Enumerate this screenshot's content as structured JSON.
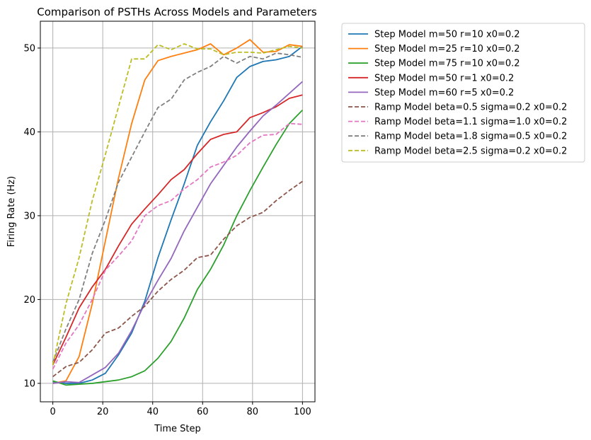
{
  "chart_data": {
    "type": "line",
    "title": "Comparison of PSTHs Across Models and Parameters",
    "xlabel": "Time Step",
    "ylabel": "Firing Rate (Hz)",
    "xlim": [
      -5,
      105
    ],
    "ylim": [
      7.8,
      53.2
    ],
    "xticks": [
      0,
      20,
      40,
      60,
      80,
      100
    ],
    "yticks": [
      10,
      20,
      30,
      40,
      50
    ],
    "grid": true,
    "legend_position": "outside-right",
    "x": [
      0,
      5.26,
      10.53,
      15.79,
      21.05,
      26.32,
      31.58,
      36.84,
      42.11,
      47.37,
      52.63,
      57.89,
      63.16,
      68.42,
      73.68,
      78.95,
      84.21,
      89.47,
      94.74,
      100
    ],
    "series": [
      {
        "name": "Step Model m=50 r=10 x0=0.2",
        "color": "#1f77b4",
        "dash": false,
        "values": [
          10.2,
          10.0,
          10.0,
          10.4,
          11.2,
          13.4,
          16.0,
          19.8,
          25.0,
          29.5,
          33.8,
          38.4,
          41.2,
          43.7,
          46.5,
          47.8,
          48.4,
          48.6,
          49.0,
          50.2
        ]
      },
      {
        "name": "Step Model m=25 r=10 x0=0.2",
        "color": "#ff7f0e",
        "dash": false,
        "values": [
          10.0,
          10.3,
          13.2,
          19.5,
          27.0,
          34.5,
          41.0,
          46.2,
          48.5,
          49.0,
          49.4,
          49.8,
          50.5,
          49.2,
          50.0,
          51.0,
          49.5,
          49.6,
          50.4,
          50.2
        ]
      },
      {
        "name": "Step Model m=75 r=10 x0=0.2",
        "color": "#2ca02c",
        "dash": false,
        "values": [
          10.3,
          9.8,
          9.9,
          10.0,
          10.2,
          10.4,
          10.8,
          11.5,
          13.0,
          15.0,
          17.8,
          21.2,
          23.6,
          26.5,
          30.0,
          33.0,
          35.8,
          38.5,
          41.0,
          42.6
        ]
      },
      {
        "name": "Step Model m=50 r=1 x0=0.2",
        "color": "#d62728",
        "dash": false,
        "values": [
          12.2,
          15.5,
          19.0,
          21.5,
          23.6,
          26.4,
          29.0,
          30.8,
          32.5,
          34.3,
          35.5,
          37.4,
          39.1,
          39.7,
          40.0,
          41.7,
          42.3,
          43.0,
          44.0,
          44.4
        ]
      },
      {
        "name": "Step Model m=60 r=5 x0=0.2",
        "color": "#9467bd",
        "dash": false,
        "values": [
          10.0,
          10.2,
          10.1,
          11.0,
          11.9,
          13.6,
          16.3,
          19.5,
          22.3,
          24.9,
          28.2,
          31.0,
          33.8,
          36.0,
          38.2,
          40.1,
          41.9,
          43.2,
          44.6,
          46.0
        ]
      },
      {
        "name": "Ramp Model beta=0.5 sigma=0.2 x0=0.2",
        "color": "#8c564b",
        "dash": true,
        "values": [
          10.8,
          12.0,
          12.5,
          14.0,
          16.0,
          16.6,
          18.0,
          19.2,
          21.0,
          22.4,
          23.5,
          25.0,
          25.3,
          27.2,
          28.8,
          29.8,
          30.4,
          31.8,
          33.0,
          34.1
        ]
      },
      {
        "name": "Ramp Model beta=1.1 sigma=1.0 x0=0.2",
        "color": "#e377c2",
        "dash": true,
        "values": [
          11.7,
          14.8,
          17.0,
          20.0,
          23.5,
          25.2,
          27.0,
          30.0,
          31.2,
          31.8,
          33.2,
          34.3,
          35.8,
          36.4,
          37.2,
          38.7,
          39.6,
          39.7,
          41.0,
          40.9
        ]
      },
      {
        "name": "Ramp Model beta=1.8 sigma=0.5 x0=0.2",
        "color": "#7f7f7f",
        "dash": true,
        "values": [
          12.5,
          16.5,
          20.0,
          25.5,
          29.5,
          34.0,
          37.0,
          40.0,
          42.9,
          43.9,
          46.2,
          47.1,
          47.8,
          49.0,
          48.2,
          49.0,
          48.7,
          49.4,
          49.2,
          48.9
        ]
      },
      {
        "name": "Ramp Model beta=2.5 sigma=0.2 x0=0.2",
        "color": "#bcbd22",
        "dash": true,
        "values": [
          12.2,
          19.5,
          25.0,
          31.8,
          37.3,
          43.0,
          48.7,
          48.7,
          50.4,
          49.8,
          50.5,
          49.9,
          49.9,
          49.2,
          49.5,
          49.5,
          49.4,
          49.8,
          50.2,
          50.0
        ]
      }
    ]
  }
}
